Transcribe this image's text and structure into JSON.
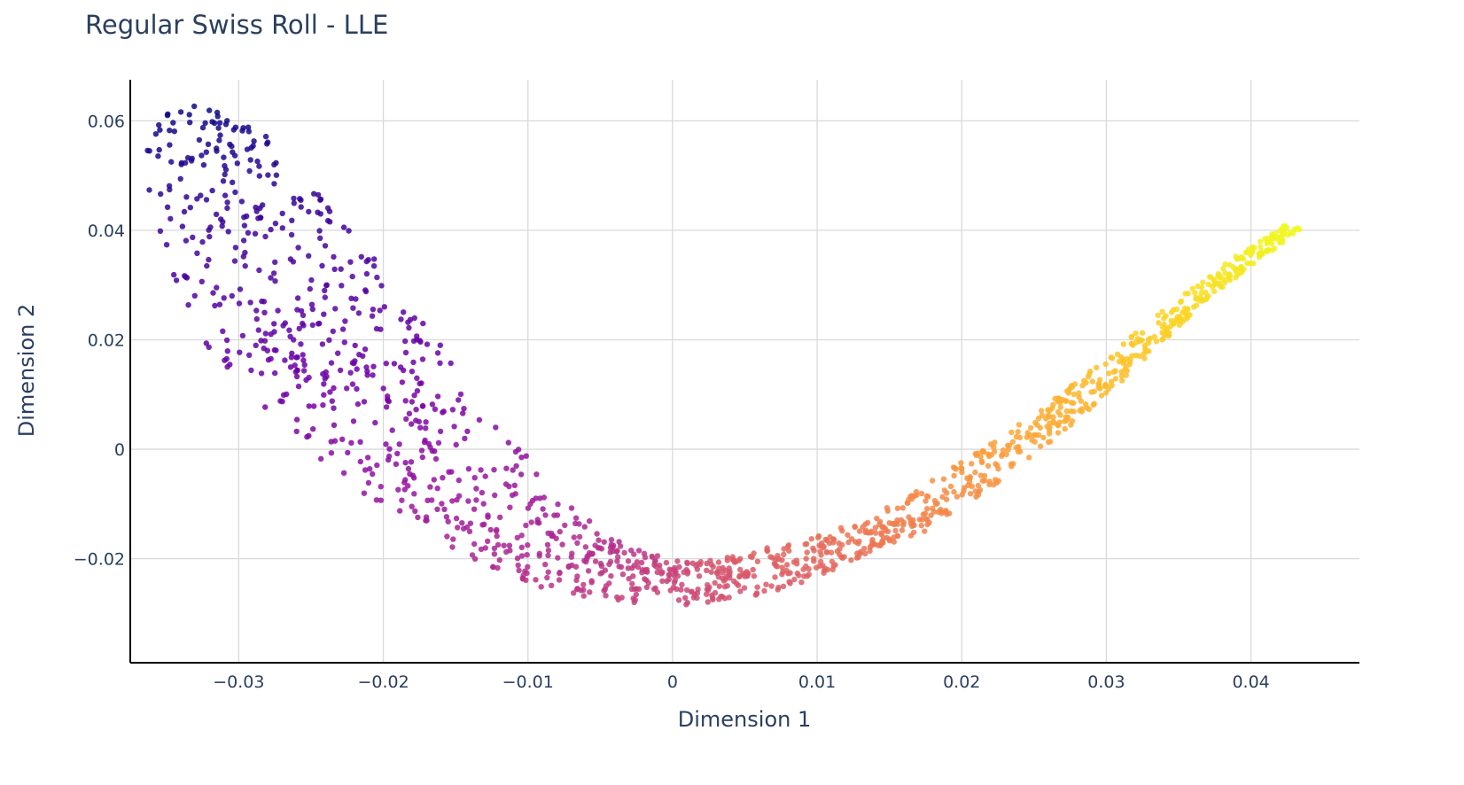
{
  "chart_data": {
    "type": "scatter",
    "title": "Regular Swiss Roll - LLE",
    "xlabel": "Dimension 1",
    "ylabel": "Dimension 2",
    "xlim": [
      -0.0375,
      0.0475
    ],
    "ylim": [
      -0.039,
      0.0675
    ],
    "xticks": [
      -0.03,
      -0.02,
      -0.01,
      0,
      0.01,
      0.02,
      0.03,
      0.04
    ],
    "yticks": [
      -0.02,
      0,
      0.02,
      0.04,
      0.06
    ],
    "xtick_labels": [
      "−0.03",
      "−0.02",
      "−0.01",
      "0",
      "0.01",
      "0.02",
      "0.03",
      "0.04"
    ],
    "ytick_labels": [
      "−0.02",
      "0",
      "0.02",
      "0.04",
      "0.06"
    ],
    "grid": true,
    "legend": "none",
    "colorscale": "plasma",
    "colorscale_stops": [
      "#0d0887",
      "#46039f",
      "#7201a8",
      "#9c179e",
      "#bd3786",
      "#d8576b",
      "#ed7953",
      "#fb9f3a",
      "#fdca26",
      "#f0f921"
    ],
    "point_count": 1500,
    "curve_points": [
      [
        -0.033,
        0.062
      ],
      [
        -0.0318,
        0.054
      ],
      [
        -0.0302,
        0.0455
      ],
      [
        -0.0285,
        0.037
      ],
      [
        -0.0265,
        0.0285
      ],
      [
        -0.0245,
        0.0205
      ],
      [
        -0.0225,
        0.0135
      ],
      [
        -0.02,
        0.0065
      ],
      [
        -0.0175,
        -0.0005
      ],
      [
        -0.015,
        -0.0065
      ],
      [
        -0.012,
        -0.013
      ],
      [
        -0.009,
        -0.018
      ],
      [
        -0.006,
        -0.0215
      ],
      [
        -0.003,
        -0.0235
      ],
      [
        0.0,
        -0.0245
      ],
      [
        0.003,
        -0.024
      ],
      [
        0.006,
        -0.0225
      ],
      [
        0.009,
        -0.02
      ],
      [
        0.012,
        -0.0175
      ],
      [
        0.015,
        -0.0145
      ],
      [
        0.018,
        -0.01
      ],
      [
        0.021,
        -0.0045
      ],
      [
        0.024,
        0.001
      ],
      [
        0.027,
        0.007
      ],
      [
        0.03,
        0.0135
      ],
      [
        0.033,
        0.0205
      ],
      [
        0.036,
        0.0275
      ],
      [
        0.039,
        0.0335
      ],
      [
        0.043,
        0.0405
      ]
    ],
    "band_spread": [
      0.0022,
      0.0048,
      0.0062,
      0.0072,
      0.0078,
      0.0078,
      0.0076,
      0.0072,
      0.0068,
      0.0064,
      0.0058,
      0.0052,
      0.0048,
      0.0044,
      0.0042,
      0.0038,
      0.0034,
      0.003,
      0.0026,
      0.0024,
      0.0022,
      0.002,
      0.0018,
      0.0016,
      0.0014,
      0.0012,
      0.001,
      0.0009,
      0.0008
    ]
  }
}
